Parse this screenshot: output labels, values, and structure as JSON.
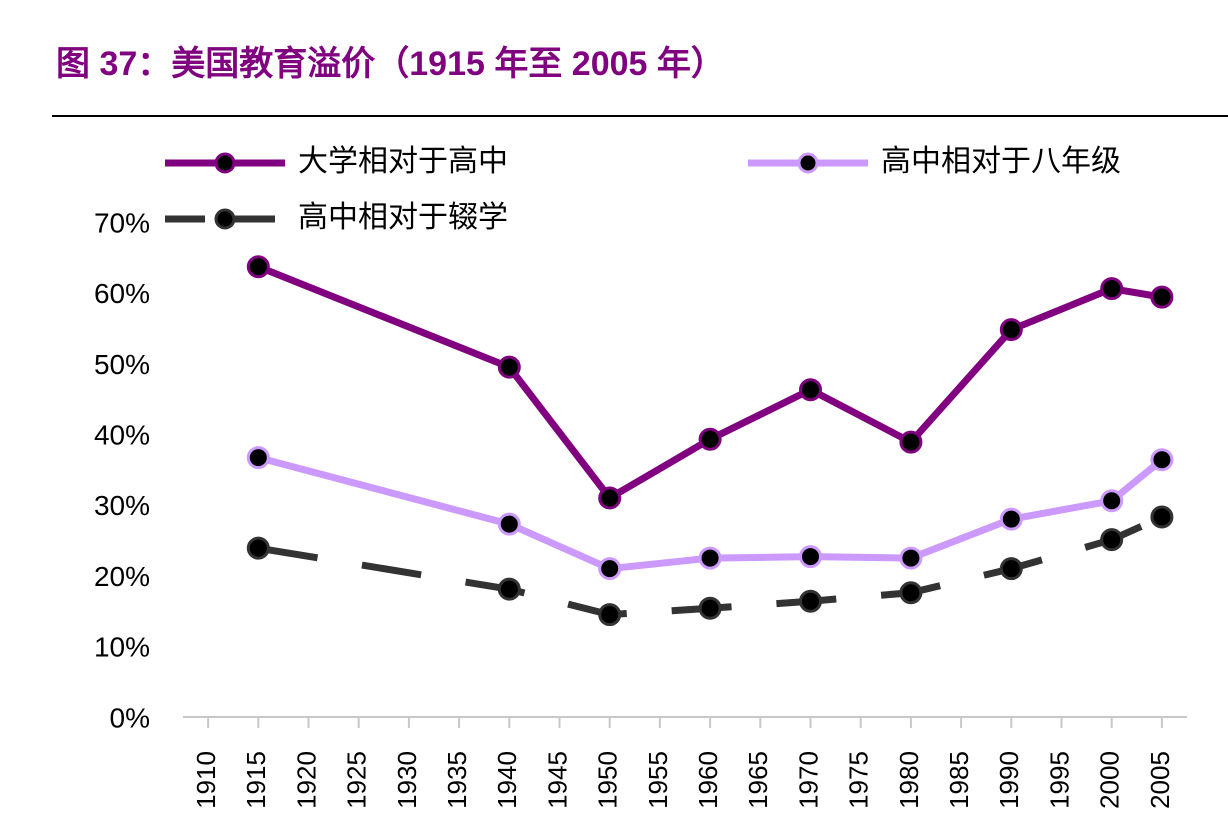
{
  "chart_data": {
    "type": "line",
    "title": "图 37：美国教育溢价（1915 年至 2005 年）",
    "x": [
      1915,
      1940,
      1950,
      1960,
      1970,
      1980,
      1990,
      2000,
      2005
    ],
    "series": [
      {
        "name": "大学相对于高中",
        "color": "#800080",
        "dashed": false,
        "values": [
          64.1,
          49.9,
          31.4,
          39.7,
          46.7,
          39.3,
          55.2,
          61.0,
          59.8
        ]
      },
      {
        "name": "高中相对于八年级",
        "color": "#cc99ff",
        "dashed": false,
        "values": [
          37.1,
          27.7,
          21.4,
          22.9,
          23.1,
          22.9,
          28.4,
          31.0,
          36.8
        ]
      },
      {
        "name": "高中相对于辍学",
        "color": "#333333",
        "dashed": true,
        "values": [
          24.3,
          18.5,
          14.9,
          15.8,
          16.8,
          18.0,
          21.4,
          25.5,
          28.7
        ]
      }
    ],
    "marker_color": "#000000",
    "xlim": [
      1907.5,
      2007.5
    ],
    "xticks": [
      1910,
      1915,
      1920,
      1925,
      1930,
      1935,
      1940,
      1945,
      1950,
      1955,
      1960,
      1965,
      1970,
      1975,
      1980,
      1985,
      1990,
      1995,
      2000,
      2005
    ],
    "ylim": [
      0,
      70
    ],
    "yticks": [
      {
        "value": 0,
        "label": "0%"
      },
      {
        "value": 10,
        "label": "10%"
      },
      {
        "value": 20,
        "label": "20%"
      },
      {
        "value": 30,
        "label": "30%"
      },
      {
        "value": 40,
        "label": "40%"
      },
      {
        "value": 50,
        "label": "50%"
      },
      {
        "value": 60,
        "label": "60%"
      },
      {
        "value": 70,
        "label": "70%"
      }
    ],
    "grid": false,
    "legend": "top"
  }
}
